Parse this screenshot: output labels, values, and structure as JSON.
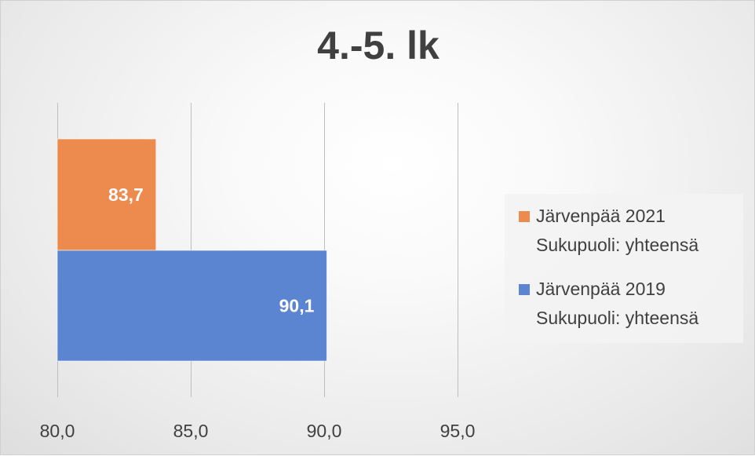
{
  "chart_data": {
    "type": "bar",
    "orientation": "horizontal",
    "title": "4.-5. lk",
    "categories": [
      ""
    ],
    "series": [
      {
        "name": "Järvenpää 2021 Sukupuoli: yhteensä",
        "name_lines": [
          "Järvenpää 2021",
          "Sukupuoli: yhteensä"
        ],
        "values": [
          83.7
        ],
        "labels": [
          "83,7"
        ],
        "color": "#ED8B4E"
      },
      {
        "name": "Järvenpää 2019 Sukupuoli: yhteensä",
        "name_lines": [
          "Järvenpää 2019",
          "Sukupuoli: yhteensä"
        ],
        "values": [
          90.1
        ],
        "labels": [
          "90,1"
        ],
        "color": "#5B84D1"
      }
    ],
    "xlim": [
      80,
      95
    ],
    "xticks": [
      80,
      85,
      90,
      95
    ],
    "xtick_labels": [
      "80,0",
      "85,0",
      "90,0",
      "95,0"
    ],
    "grid": true,
    "legend_position": "right",
    "colors": {
      "gridline": "#bfbfbf",
      "text": "#404040",
      "data_label": "#ffffff"
    }
  }
}
